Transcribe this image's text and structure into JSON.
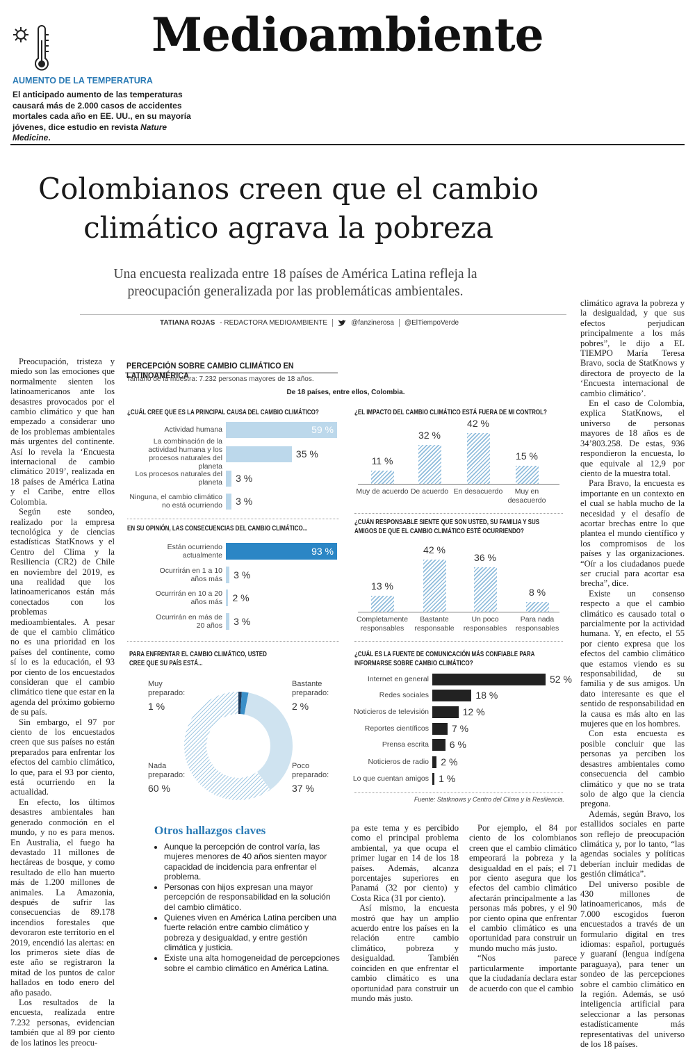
{
  "header": {
    "section": "Medioambiente",
    "kicker": "AUMENTO DE LA TEMPERATURA",
    "teaser": [
      "El anticipado aumento de las temperaturas causará más de 2.000 casos de accidentes mortales cada año en EE. UU., en su mayoría jóvenes, dice estudio en revista ",
      "Nature Medicine",
      "."
    ]
  },
  "article": {
    "headline": "Colombianos creen que el cambio climático agrava la pobreza",
    "subheading": "Una encuesta realizada entre 18 países de América Latina refleja la preocupación generalizada por las problemáticas ambientales.",
    "byline": {
      "author": "TATIANA ROJAS",
      "role": "- REDACTORA MEDIOAMBIENTE",
      "twitter": "@fanzinerosa",
      "handle": "@ElTiempoVerde"
    },
    "columns": [
      [
        "Preocupación, tristeza y miedo son las emociones que normalmente sienten los latinoamericanos ante los desastres provocados por el cambio climático y que han empezado a considerar uno de los problemas ambientales más urgentes del continente. Así lo revela la ‘Encuesta internacional de cambio climático 2019’, realizada en 18 países de América Latina y el Caribe, entre ellos Colombia.",
        "Según este sondeo, realizado por la empresa tecnológica y de ciencias estadísticas StatKnows y el Centro del Clima y la Resiliencia (CR2) de Chile en noviembre del 2019, es una realidad que los latinoamericanos están más conectados con los problemas medioambientales. A pesar de que el cambio climático no es una prioridad en los países del continente, como sí lo es la educación, el 93 por ciento de los encuestados consideran que el cambio climático tiene que estar en la agenda del próximo gobierno de su país.",
        "Sin embargo, el 97 por ciento de los encuestados creen que sus países no están preparados para enfrentar los efectos del cambio climático, lo que, para el 93 por ciento, está ocurriendo en la actualidad.",
        "En efecto, los últimos desastres ambientales han generado conmoción en el mundo, y no es para menos. En Australia, el fuego ha devastado 11 millones de hectáreas de bosque, y como resultado de ello han muerto más de 1.200 millones de animales. La Amazonia, después de sufrir las consecuencias de 89.178 incendios forestales que devoraron este territorio en el 2019, encendió las alertas: en los primeros siete días de este año se registraron la mitad de los puntos de calor hallados en todo enero del año pasado.",
        "Los resultados de la encuesta, realizada entre 7.232 personas, evidencian también que al 89 por ciento de los latinos les preocu-"
      ],
      [
        "pa este tema y es percibido como el principal problema ambiental, ya que ocupa el primer lugar en 14 de los 18 países. Además, alcanza porcentajes superiores en Panamá (32 por ciento) y Costa Rica (31 por ciento).",
        "Así mismo, la encuesta mostró que hay un amplio acuerdo entre los países en la relación entre cambio climático, pobreza y desigualdad. También coinciden en que enfrentar el cambio climático es una oportunidad para construir un mundo más justo."
      ],
      [
        "Por ejemplo, el 84 por ciento de los colombianos creen que el cambio climático empeorará la pobreza y la desigualdad en el país; el 71 por ciento asegura que los efectos del cambio climático afectarán principalmente a las personas más pobres, y el 90 por ciento opina que enfrentar el cambio climático es una oportunidad para construir un mundo mucho más justo.",
        "“Nos parece particularmente importante que la ciudadanía declara estar de acuerdo con que el cambio"
      ],
      [
        "climático agrava la pobreza y la desigualdad, y que sus efectos perjudican principalmente a los más pobres”, le dijo a EL TIEMPO María Teresa Bravo, socia de StatKnows y directora de proyecto de la ‘Encuesta internacional de cambio climático’.",
        "En el caso de Colombia, explica StatKnows, el universo de personas mayores de 18 años es de 34’803.258. De estas, 936 respondieron la encuesta, lo que equivale al 12,9 por ciento de la muestra total.",
        "Para Bravo, la encuesta es importante en un contexto en el cual se habla mucho de la necesidad y el desafío de acortar brechas entre lo que plantea el mundo científico y los compromisos de los países y las organizaciones. “Oír a los ciudadanos puede ser crucial para acortar esa brecha”, dice.",
        "Existe un consenso respecto a que el cambio climático es causado total o parcialmente por la actividad humana. Y, en efecto, el 55 por ciento expresa que los efectos del cambio climático que estamos viendo es su responsabilidad, de su familia y de sus amigos. Un dato interesante es que el sentido de responsabilidad en la causa es más alto en las mujeres que en los hombres.",
        "Con esta encuesta es posible concluir que las personas ya perciben los desastres ambientales como consecuencia del cambio climático y que no se trata solo de algo que la ciencia pregona.",
        "Además, según Bravo, los estallidos sociales en parte son reflejo de preocupación climática y, por lo tanto, “las agendas sociales y políticas deberían incluir medidas de gestión climática”.",
        "Del universo posible de 430 millones de latinoamericanos, más de 7.000 escogidos fueron encuestados a través de un formulario digital en tres idiomas: español, portugués y guaraní (lengua indígena paraguaya), para tener un sondeo de las percepciones sobre el cambio climático en la región. Además, se usó inteligencia artificial para seleccionar a las personas estadísticamente más representativas del universo de los 18 países."
      ]
    ]
  },
  "findings": {
    "title": "Otros hallazgos claves",
    "items": [
      "Aunque la percepción de control varía, las mujeres menores de 40 años sienten mayor capacidad de incidencia para enfrentar el problema.",
      "Personas con hijos expresan una mayor percepción de responsabilidad en la solución del cambio climático.",
      "Quienes viven en América Latina perciben una fuerte relación entre cambio climático y pobreza y desigualdad, y entre gestión climática y justicia.",
      "Existe una alta homogeneidad de percepciones sobre el cambio climático en América Latina."
    ]
  },
  "infographic": {
    "title": "PERCEPCIÓN SOBRE CAMBIO CLIMÁTICO EN LATINOAMÉRICA",
    "sample": "Tamaño de la muestra: 7.232 personas mayores de 18 años.",
    "countries": "De 18 países, entre ellos, Colombia.",
    "source": "Fuente: Statknows y Centro del Clima y la Resiliencia."
  },
  "chart_data": [
    {
      "type": "bar",
      "orientation": "horizontal",
      "title": "¿CUÁL CREE QUE ES LA PRINCIPAL CAUSA DEL CAMBIO CLIMÁTICO?",
      "categories": [
        "Actividad humana",
        "La combinación de la actividad humana y los procesos naturales del planeta",
        "Los procesos naturales del planeta",
        "Ninguna, el cambio climático no está ocurriendo"
      ],
      "values": [
        59,
        35,
        3,
        3
      ],
      "value_labels": [
        "59 %",
        "35 %",
        "3 %",
        "3 %"
      ],
      "color": "#bcd8eb"
    },
    {
      "type": "bar",
      "orientation": "vertical",
      "title": "¿EL IMPACTO DEL CAMBIO CLIMÁTICO ESTÁ FUERA DE MI CONTROL?",
      "categories": [
        "Muy de acuerdo",
        "De acuerdo",
        "En desacuerdo",
        "Muy en desacuerdo"
      ],
      "values": [
        11,
        32,
        42,
        15
      ],
      "value_labels": [
        "11 %",
        "32 %",
        "42 %",
        "15 %"
      ],
      "color": "#8fbcdc",
      "hatch": true
    },
    {
      "type": "bar",
      "orientation": "horizontal",
      "title": "EN SU OPINIÓN, LAS CONSECUENCIAS DEL CAMBIO CLIMÁTICO...",
      "categories": [
        "Están ocurriendo actualmente",
        "Ocurrirán en 1 a 10 años más",
        "Ocurrirán en 10 a 20 años más",
        "Ocurrirán en más de 20 años"
      ],
      "values": [
        93,
        3,
        2,
        3
      ],
      "value_labels": [
        "93 %",
        "3 %",
        "2 %",
        "3 %"
      ],
      "colors": [
        "#2b86c5",
        "#bcd8eb",
        "#bcd8eb",
        "#bcd8eb"
      ]
    },
    {
      "type": "bar",
      "orientation": "vertical",
      "title": "¿CUÁN RESPONSABLE SIENTE QUE SON USTED, SU FAMILIA Y SUS AMIGOS DE QUE EL CAMBIO CLIMÁTICO ESTÉ OCURRIENDO?",
      "categories": [
        "Completamente responsables",
        "Bastante responsable",
        "Un poco responsables",
        "Para nada responsables"
      ],
      "values": [
        13,
        42,
        36,
        8
      ],
      "value_labels": [
        "13 %",
        "42 %",
        "36 %",
        "8 %"
      ],
      "color": "#8fbcdc",
      "hatch": true
    },
    {
      "type": "donut",
      "title": "PARA ENFRENTAR EL CAMBIO CLIMÁTICO, USTED CREE QUE SU PAÍS ESTÁ...",
      "categories": [
        "Muy preparado:",
        "Bastante preparado:",
        "Poco preparado:",
        "Nada preparado:"
      ],
      "values": [
        1,
        2,
        37,
        60
      ],
      "value_labels": [
        "1 %",
        "2 %",
        "37 %",
        "60 %"
      ],
      "colors": [
        "#1e3a5a",
        "#3a8fc8",
        "#cfe3f0",
        "#9cc5e1"
      ],
      "hatch": [
        false,
        false,
        false,
        true
      ]
    },
    {
      "type": "bar",
      "orientation": "horizontal",
      "title": "¿CUÁL ES LA FUENTE DE COMUNICACIÓN MÁS CONFIABLE PARA INFORMARSE SOBRE CAMBIO CLIMÁTICO?",
      "categories": [
        "Internet en general",
        "Redes sociales",
        "Noticieros de televisión",
        "Reportes científicos",
        "Prensa escrita",
        "Noticieros de radio",
        "Lo que cuentan amigos"
      ],
      "values": [
        52,
        18,
        12,
        7,
        6,
        2,
        1
      ],
      "value_labels": [
        "52 %",
        "18 %",
        "12 %",
        "7 %",
        "6 %",
        "2 %",
        "1 %"
      ],
      "color": "#222222"
    }
  ]
}
